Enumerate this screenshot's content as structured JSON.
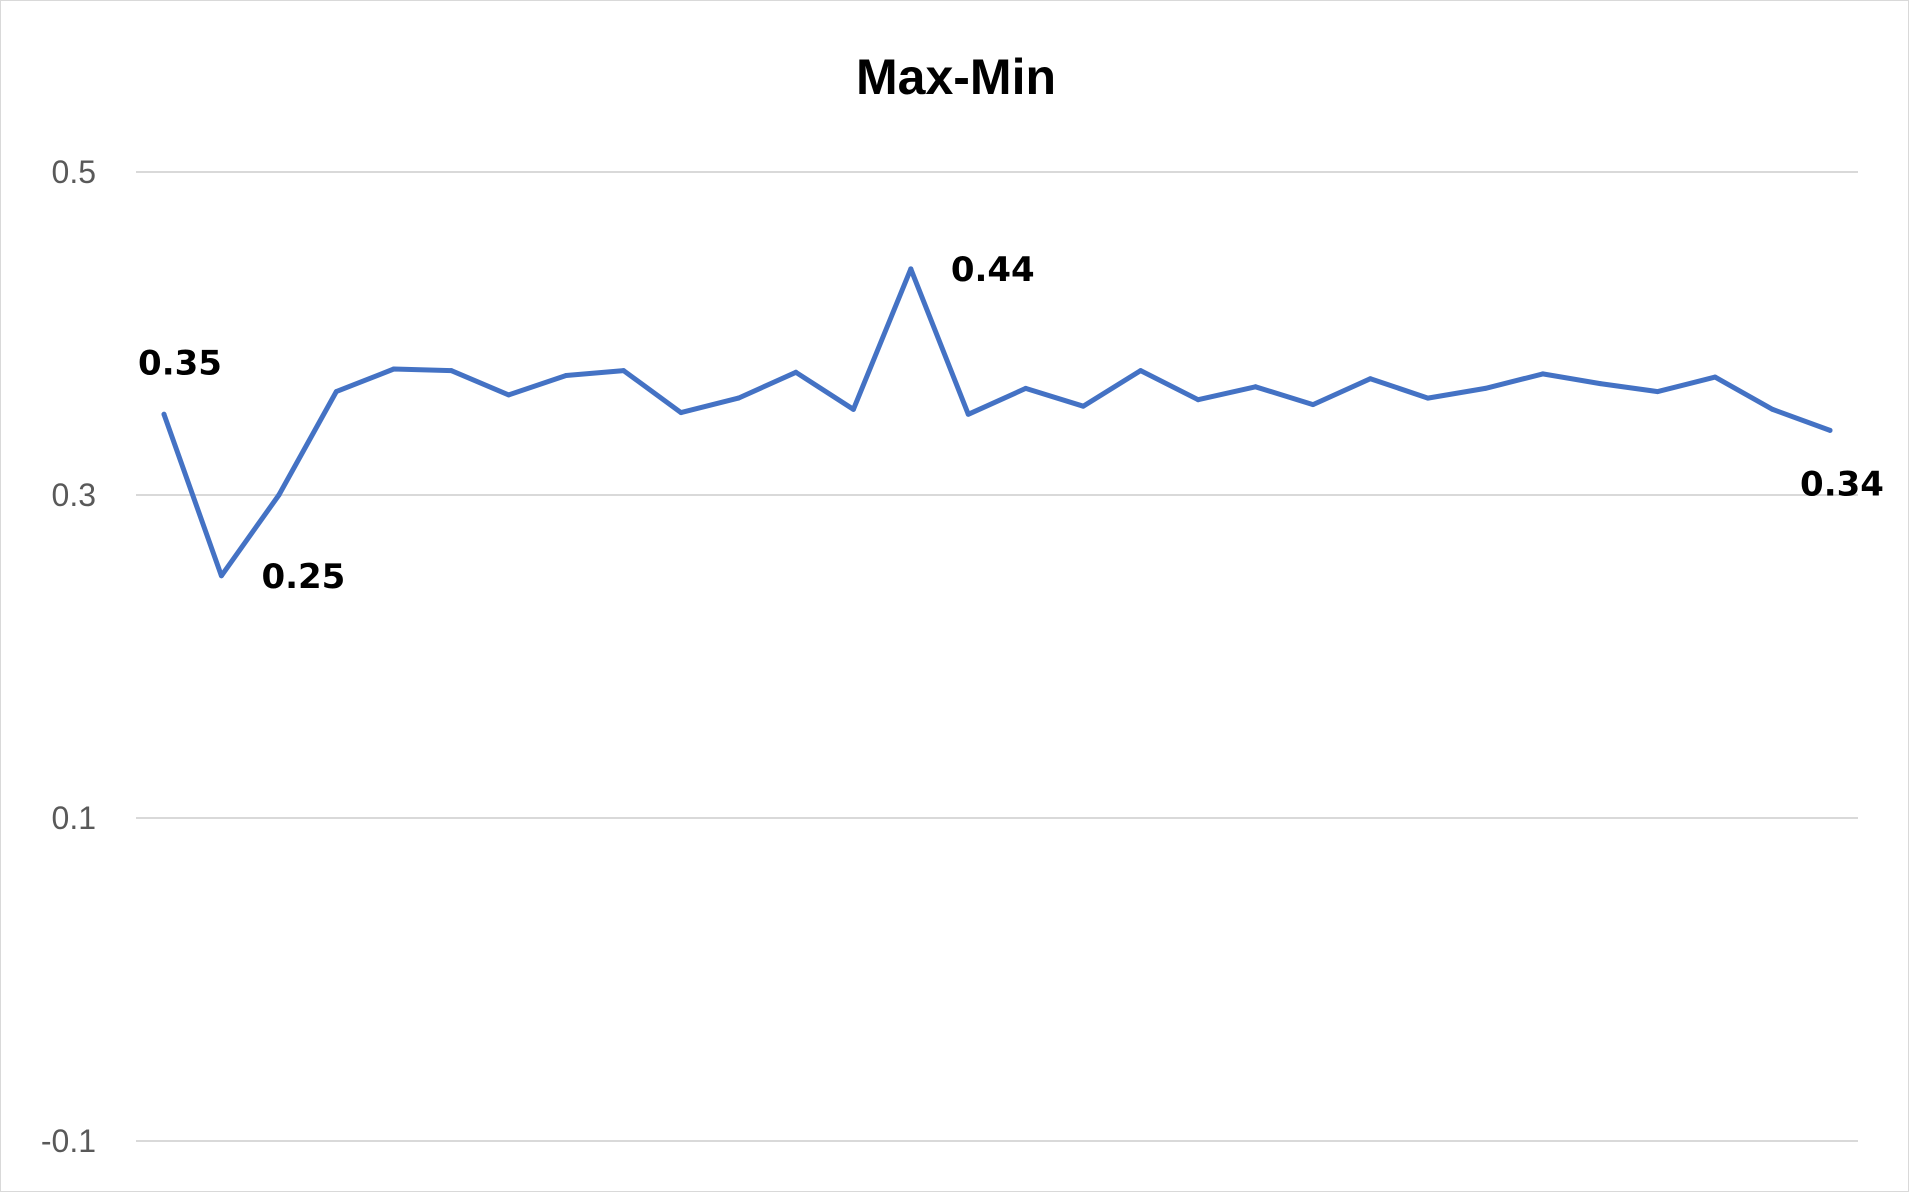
{
  "chart_data": {
    "type": "line",
    "title": "Max-Min",
    "xlabel": "",
    "ylabel": "",
    "ylim": [
      -0.1,
      0.5
    ],
    "yticks": [
      0.5,
      0.3,
      0.1,
      -0.1
    ],
    "ytick_labels": [
      "0.5",
      "0.3",
      "0.1",
      "-0.1"
    ],
    "grid": true,
    "legend": "none",
    "color": "#4472C4",
    "x": [
      1,
      2,
      3,
      4,
      5,
      6,
      7,
      8,
      9,
      10,
      11,
      12,
      13,
      14,
      15,
      16,
      17,
      18,
      19,
      20,
      21,
      22,
      23,
      24,
      25,
      26,
      27,
      28,
      29,
      30
    ],
    "values": [
      0.35,
      0.25,
      0.3,
      0.364,
      0.378,
      0.377,
      0.362,
      0.374,
      0.377,
      0.351,
      0.36,
      0.376,
      0.353,
      0.44,
      0.35,
      0.366,
      0.355,
      0.377,
      0.359,
      0.367,
      0.356,
      0.372,
      0.36,
      0.366,
      0.375,
      0.369,
      0.364,
      0.373,
      0.353,
      0.34
    ],
    "data_labels": [
      {
        "index": 0,
        "text": "0.35",
        "position": "above"
      },
      {
        "index": 1,
        "text": "0.25",
        "position": "right"
      },
      {
        "index": 13,
        "text": "0.44",
        "position": "right"
      },
      {
        "index": 29,
        "text": "0.34",
        "position": "below"
      }
    ]
  }
}
